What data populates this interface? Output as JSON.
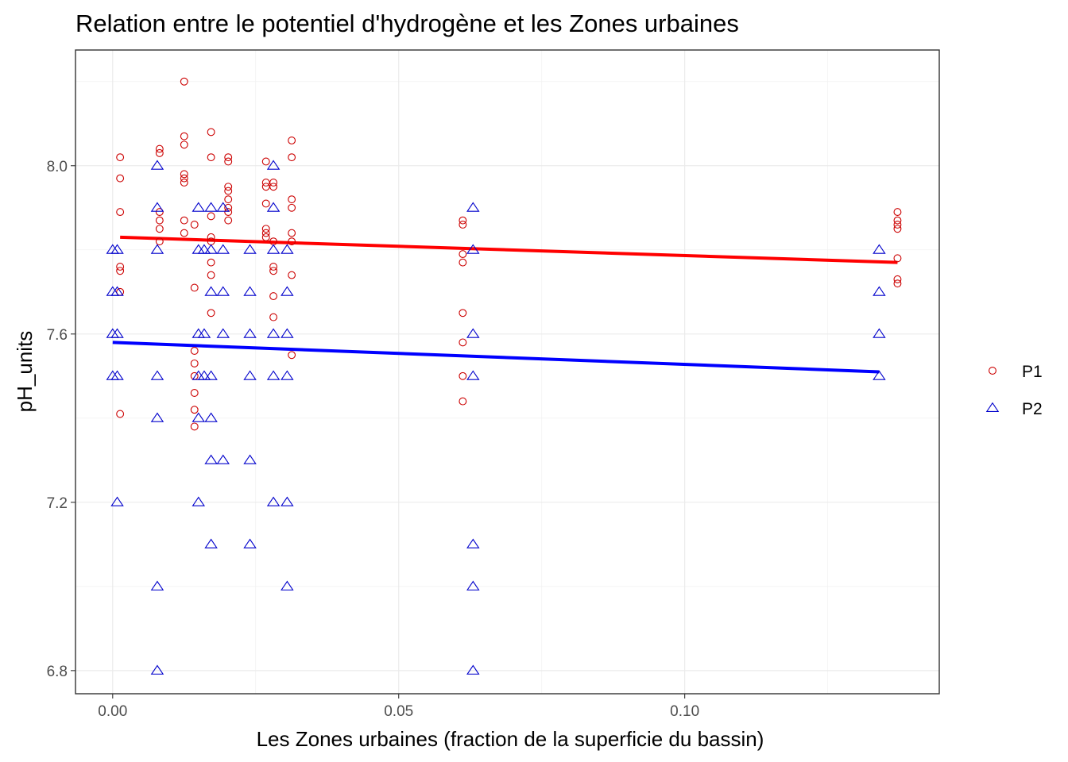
{
  "chart_data": {
    "type": "scatter",
    "title": "Relation entre le potentiel d'hydrogène et les Zones urbaines",
    "xlabel": "Les Zones urbaines (fraction de la superficie du bassin)",
    "ylabel": "pH_units",
    "xlim": [
      -0.0065,
      0.1445
    ],
    "ylim": [
      6.745,
      8.275
    ],
    "xticks": [
      0.0,
      0.05,
      0.1
    ],
    "xtick_labels": [
      "0.00",
      "0.05",
      "0.10"
    ],
    "yticks": [
      6.8,
      7.2,
      7.6,
      8.0
    ],
    "ytick_labels": [
      "6.8",
      "7.2",
      "7.6",
      "8.0"
    ],
    "grid": true,
    "legend_position": "right",
    "series": [
      {
        "name": "P1",
        "color": "#cc0000",
        "marker": "circle",
        "points": [
          [
            0.0013,
            8.02
          ],
          [
            0.0013,
            7.97
          ],
          [
            0.0013,
            7.89
          ],
          [
            0.0013,
            7.76
          ],
          [
            0.0013,
            7.75
          ],
          [
            0.0013,
            7.7
          ],
          [
            0.0013,
            7.41
          ],
          [
            0.0082,
            8.04
          ],
          [
            0.0082,
            8.03
          ],
          [
            0.0082,
            7.89
          ],
          [
            0.0082,
            7.87
          ],
          [
            0.0082,
            7.85
          ],
          [
            0.0082,
            7.82
          ],
          [
            0.0125,
            8.2
          ],
          [
            0.0125,
            8.07
          ],
          [
            0.0125,
            8.05
          ],
          [
            0.0125,
            7.98
          ],
          [
            0.0125,
            7.97
          ],
          [
            0.0125,
            7.96
          ],
          [
            0.0125,
            7.87
          ],
          [
            0.0125,
            7.84
          ],
          [
            0.0143,
            7.86
          ],
          [
            0.0143,
            7.71
          ],
          [
            0.0143,
            7.56
          ],
          [
            0.0143,
            7.53
          ],
          [
            0.0143,
            7.5
          ],
          [
            0.0143,
            7.46
          ],
          [
            0.0143,
            7.42
          ],
          [
            0.0143,
            7.38
          ],
          [
            0.0172,
            8.08
          ],
          [
            0.0172,
            8.02
          ],
          [
            0.0172,
            7.88
          ],
          [
            0.0172,
            7.83
          ],
          [
            0.0172,
            7.82
          ],
          [
            0.0172,
            7.77
          ],
          [
            0.0172,
            7.74
          ],
          [
            0.0172,
            7.65
          ],
          [
            0.0202,
            8.02
          ],
          [
            0.0202,
            8.01
          ],
          [
            0.0202,
            7.95
          ],
          [
            0.0202,
            7.94
          ],
          [
            0.0202,
            7.92
          ],
          [
            0.0202,
            7.9
          ],
          [
            0.0202,
            7.89
          ],
          [
            0.0202,
            7.87
          ],
          [
            0.0268,
            8.01
          ],
          [
            0.0268,
            7.96
          ],
          [
            0.0268,
            7.95
          ],
          [
            0.0268,
            7.91
          ],
          [
            0.0268,
            7.85
          ],
          [
            0.0268,
            7.84
          ],
          [
            0.0268,
            7.83
          ],
          [
            0.0281,
            7.96
          ],
          [
            0.0281,
            7.95
          ],
          [
            0.0281,
            7.82
          ],
          [
            0.0281,
            7.76
          ],
          [
            0.0281,
            7.75
          ],
          [
            0.0281,
            7.69
          ],
          [
            0.0281,
            7.64
          ],
          [
            0.0313,
            8.06
          ],
          [
            0.0313,
            8.02
          ],
          [
            0.0313,
            7.92
          ],
          [
            0.0313,
            7.9
          ],
          [
            0.0313,
            7.84
          ],
          [
            0.0313,
            7.82
          ],
          [
            0.0313,
            7.74
          ],
          [
            0.0313,
            7.55
          ],
          [
            0.0612,
            7.87
          ],
          [
            0.0612,
            7.86
          ],
          [
            0.0612,
            7.79
          ],
          [
            0.0612,
            7.77
          ],
          [
            0.0612,
            7.65
          ],
          [
            0.0612,
            7.58
          ],
          [
            0.0612,
            7.5
          ],
          [
            0.0612,
            7.44
          ],
          [
            0.1372,
            7.89
          ],
          [
            0.1372,
            7.87
          ],
          [
            0.1372,
            7.86
          ],
          [
            0.1372,
            7.85
          ],
          [
            0.1372,
            7.78
          ],
          [
            0.1372,
            7.73
          ],
          [
            0.1372,
            7.72
          ]
        ],
        "trend": {
          "x": [
            0.0013,
            0.1372
          ],
          "y": [
            7.83,
            7.77
          ],
          "color": "#ff0000"
        }
      },
      {
        "name": "P2",
        "color": "#0000cc",
        "marker": "triangle",
        "points": [
          [
            0.0,
            7.8
          ],
          [
            0.0,
            7.7
          ],
          [
            0.0,
            7.6
          ],
          [
            0.0,
            7.5
          ],
          [
            0.0008,
            7.8
          ],
          [
            0.0008,
            7.7
          ],
          [
            0.0008,
            7.6
          ],
          [
            0.0008,
            7.5
          ],
          [
            0.0008,
            7.2
          ],
          [
            0.0078,
            8.0
          ],
          [
            0.0078,
            7.9
          ],
          [
            0.0078,
            7.8
          ],
          [
            0.0078,
            7.5
          ],
          [
            0.0078,
            7.4
          ],
          [
            0.0078,
            7.0
          ],
          [
            0.0078,
            6.8
          ],
          [
            0.015,
            7.9
          ],
          [
            0.015,
            7.8
          ],
          [
            0.015,
            7.6
          ],
          [
            0.015,
            7.5
          ],
          [
            0.015,
            7.4
          ],
          [
            0.015,
            7.2
          ],
          [
            0.016,
            7.8
          ],
          [
            0.016,
            7.6
          ],
          [
            0.016,
            7.5
          ],
          [
            0.0172,
            7.9
          ],
          [
            0.0172,
            7.8
          ],
          [
            0.0172,
            7.7
          ],
          [
            0.0172,
            7.5
          ],
          [
            0.0172,
            7.4
          ],
          [
            0.0172,
            7.3
          ],
          [
            0.0172,
            7.1
          ],
          [
            0.0193,
            7.9
          ],
          [
            0.0193,
            7.8
          ],
          [
            0.0193,
            7.7
          ],
          [
            0.0193,
            7.6
          ],
          [
            0.0193,
            7.3
          ],
          [
            0.024,
            7.8
          ],
          [
            0.024,
            7.7
          ],
          [
            0.024,
            7.6
          ],
          [
            0.024,
            7.5
          ],
          [
            0.024,
            7.3
          ],
          [
            0.024,
            7.1
          ],
          [
            0.0281,
            8.0
          ],
          [
            0.0281,
            7.9
          ],
          [
            0.0281,
            7.8
          ],
          [
            0.0281,
            7.6
          ],
          [
            0.0281,
            7.5
          ],
          [
            0.0281,
            7.2
          ],
          [
            0.0305,
            7.8
          ],
          [
            0.0305,
            7.7
          ],
          [
            0.0305,
            7.6
          ],
          [
            0.0305,
            7.5
          ],
          [
            0.0305,
            7.2
          ],
          [
            0.0305,
            7.0
          ],
          [
            0.063,
            7.9
          ],
          [
            0.063,
            7.8
          ],
          [
            0.063,
            7.6
          ],
          [
            0.063,
            7.5
          ],
          [
            0.063,
            7.1
          ],
          [
            0.063,
            7.0
          ],
          [
            0.063,
            6.8
          ],
          [
            0.134,
            7.8
          ],
          [
            0.134,
            7.7
          ],
          [
            0.134,
            7.6
          ],
          [
            0.134,
            7.5
          ]
        ],
        "trend": {
          "x": [
            0.0,
            0.134
          ],
          "y": [
            7.58,
            7.51
          ],
          "color": "#0000ff"
        }
      }
    ]
  }
}
